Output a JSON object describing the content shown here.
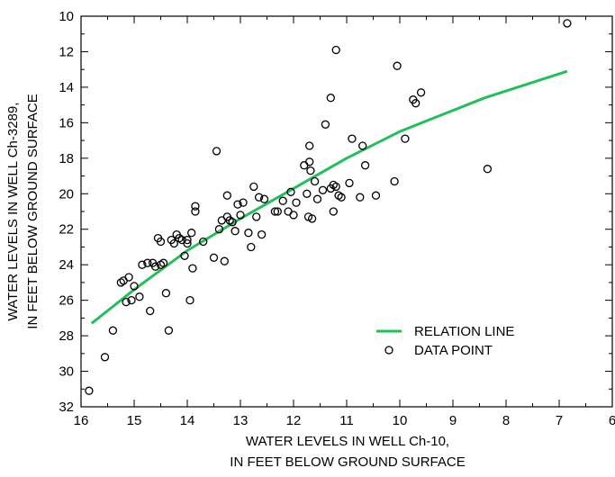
{
  "chart_data": {
    "type": "scatter",
    "xlabel_line1": "WATER LEVELS IN WELL Ch-10,",
    "xlabel_line2": "IN FEET BELOW GROUND SURFACE",
    "ylabel_line1": "WATER LEVELS IN WELL Ch-3289,",
    "ylabel_line2": "IN FEET BELOW GROUND SURFACE",
    "xlim": [
      16,
      6
    ],
    "ylim": [
      32,
      10
    ],
    "x_reversed": true,
    "y_reversed": true,
    "x_ticks": [
      "16",
      "15",
      "14",
      "13",
      "12",
      "11",
      "10",
      "9",
      "8",
      "7",
      "6"
    ],
    "y_ticks": [
      "10",
      "12",
      "14",
      "16",
      "18",
      "20",
      "22",
      "24",
      "26",
      "28",
      "30",
      "32"
    ],
    "grid": false,
    "legend_position": "bottom-right",
    "legend": [
      {
        "label": "RELATION LINE",
        "marker": "line",
        "color": "#22c05a"
      },
      {
        "label": "DATA POINT",
        "marker": "open-circle",
        "color": "#000000"
      }
    ],
    "series": [
      {
        "name": "RELATION LINE",
        "type": "line",
        "color": "#22c05a",
        "x": [
          15.8,
          15.0,
          14.0,
          13.0,
          12.0,
          11.0,
          10.0,
          9.5,
          8.4,
          6.85
        ],
        "y": [
          27.3,
          25.4,
          23.2,
          21.4,
          19.7,
          18.0,
          16.5,
          15.9,
          14.6,
          13.1
        ]
      },
      {
        "name": "DATA POINT",
        "type": "scatter",
        "marker": "open-circle",
        "color": "#000000",
        "points": [
          [
            15.85,
            31.1
          ],
          [
            15.55,
            29.2
          ],
          [
            15.4,
            27.7
          ],
          [
            15.25,
            25.0
          ],
          [
            15.2,
            24.9
          ],
          [
            15.15,
            26.1
          ],
          [
            15.1,
            24.7
          ],
          [
            15.05,
            26.0
          ],
          [
            15.0,
            25.2
          ],
          [
            14.9,
            25.8
          ],
          [
            14.85,
            24.0
          ],
          [
            14.75,
            23.9
          ],
          [
            14.7,
            26.6
          ],
          [
            14.65,
            23.9
          ],
          [
            14.6,
            24.1
          ],
          [
            14.55,
            22.5
          ],
          [
            14.5,
            22.7
          ],
          [
            14.5,
            24.0
          ],
          [
            14.45,
            23.9
          ],
          [
            14.4,
            25.6
          ],
          [
            14.35,
            27.7
          ],
          [
            14.3,
            22.6
          ],
          [
            14.25,
            22.8
          ],
          [
            14.2,
            22.3
          ],
          [
            14.15,
            22.5
          ],
          [
            14.1,
            22.6
          ],
          [
            14.05,
            23.5
          ],
          [
            14.0,
            22.6
          ],
          [
            14.0,
            22.8
          ],
          [
            13.95,
            26.0
          ],
          [
            13.92,
            22.2
          ],
          [
            13.9,
            24.2
          ],
          [
            13.85,
            20.7
          ],
          [
            13.85,
            21.0
          ],
          [
            13.7,
            22.7
          ],
          [
            13.5,
            23.6
          ],
          [
            13.45,
            17.6
          ],
          [
            13.4,
            22.0
          ],
          [
            13.35,
            21.5
          ],
          [
            13.3,
            23.8
          ],
          [
            13.25,
            20.1
          ],
          [
            13.25,
            21.3
          ],
          [
            13.2,
            21.5
          ],
          [
            13.15,
            21.6
          ],
          [
            13.1,
            22.1
          ],
          [
            13.05,
            20.6
          ],
          [
            13.0,
            21.2
          ],
          [
            12.95,
            20.5
          ],
          [
            12.85,
            22.2
          ],
          [
            12.8,
            23.0
          ],
          [
            12.75,
            19.6
          ],
          [
            12.7,
            21.3
          ],
          [
            12.65,
            20.2
          ],
          [
            12.6,
            22.3
          ],
          [
            12.55,
            20.3
          ],
          [
            12.35,
            21.0
          ],
          [
            12.3,
            21.0
          ],
          [
            12.2,
            20.4
          ],
          [
            12.1,
            21.0
          ],
          [
            12.05,
            19.9
          ],
          [
            12.0,
            21.2
          ],
          [
            11.95,
            20.5
          ],
          [
            11.8,
            18.4
          ],
          [
            11.75,
            20.0
          ],
          [
            11.72,
            21.3
          ],
          [
            11.7,
            17.3
          ],
          [
            11.7,
            18.2
          ],
          [
            11.68,
            18.7
          ],
          [
            11.65,
            21.4
          ],
          [
            11.6,
            19.3
          ],
          [
            11.55,
            20.3
          ],
          [
            11.45,
            19.8
          ],
          [
            11.4,
            16.1
          ],
          [
            11.3,
            19.7
          ],
          [
            11.3,
            14.6
          ],
          [
            11.25,
            19.5
          ],
          [
            11.25,
            21.0
          ],
          [
            11.2,
            11.9
          ],
          [
            11.15,
            20.1
          ],
          [
            11.2,
            19.6
          ],
          [
            11.1,
            20.2
          ],
          [
            10.95,
            19.4
          ],
          [
            10.9,
            16.9
          ],
          [
            10.75,
            20.2
          ],
          [
            10.7,
            17.3
          ],
          [
            10.65,
            18.4
          ],
          [
            10.45,
            20.1
          ],
          [
            10.1,
            19.3
          ],
          [
            10.05,
            12.8
          ],
          [
            9.9,
            16.9
          ],
          [
            9.75,
            14.7
          ],
          [
            9.7,
            14.9
          ],
          [
            9.6,
            14.3
          ],
          [
            8.35,
            18.6
          ],
          [
            6.85,
            10.4
          ]
        ]
      }
    ]
  }
}
